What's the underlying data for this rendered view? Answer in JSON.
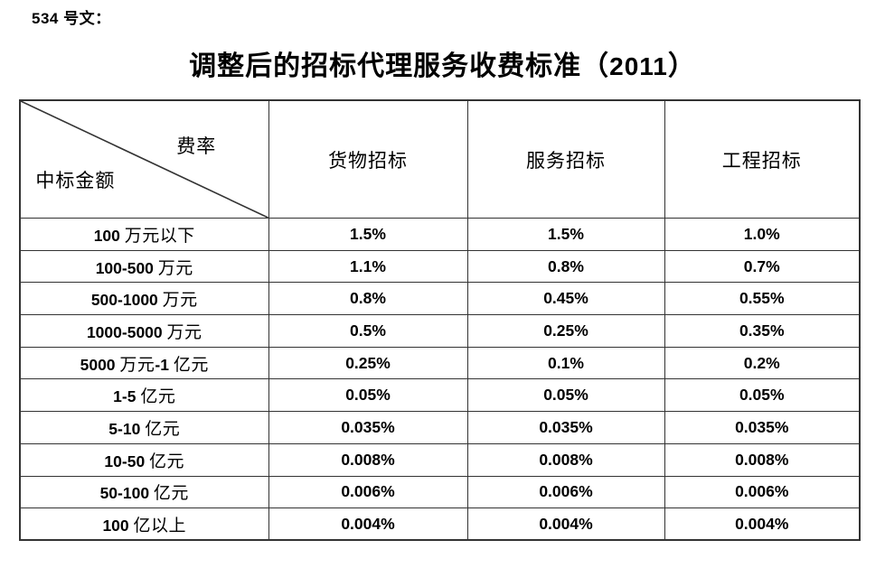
{
  "doc_label": "534 号文：",
  "title": "调整后的招标代理服务收费标准（2011）",
  "table": {
    "corner": {
      "top_right_label": "费率",
      "bottom_left_label": "中标金额"
    },
    "columns": [
      "货物招标",
      "服务招标",
      "工程招标"
    ],
    "rows": [
      {
        "range": "100 万元以下",
        "values": [
          "1.5%",
          "1.5%",
          "1.0%"
        ]
      },
      {
        "range": "100-500 万元",
        "values": [
          "1.1%",
          "0.8%",
          "0.7%"
        ]
      },
      {
        "range": "500-1000 万元",
        "values": [
          "0.8%",
          "0.45%",
          "0.55%"
        ]
      },
      {
        "range": "1000-5000 万元",
        "values": [
          "0.5%",
          "0.25%",
          "0.35%"
        ]
      },
      {
        "range": "5000 万元-1 亿元",
        "values": [
          "0.25%",
          "0.1%",
          "0.2%"
        ]
      },
      {
        "range": "1-5 亿元",
        "values": [
          "0.05%",
          "0.05%",
          "0.05%"
        ]
      },
      {
        "range": "5-10 亿元",
        "values": [
          "0.035%",
          "0.035%",
          "0.035%"
        ]
      },
      {
        "range": "10-50 亿元",
        "values": [
          "0.008%",
          "0.008%",
          "0.008%"
        ]
      },
      {
        "range": "50-100 亿元",
        "values": [
          "0.006%",
          "0.006%",
          "0.006%"
        ]
      },
      {
        "range": "100 亿以上",
        "values": [
          "0.004%",
          "0.004%",
          "0.004%"
        ]
      }
    ]
  },
  "colors": {
    "text": "#000000",
    "border": "#333333",
    "background": "#ffffff"
  }
}
